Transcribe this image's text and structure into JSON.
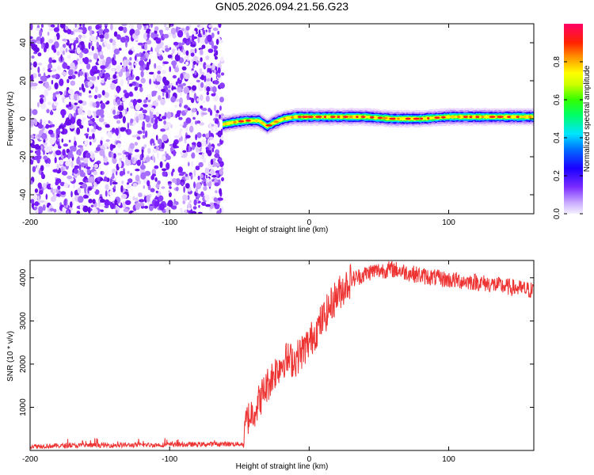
{
  "title": "GN05.2026.094.21.56.G23",
  "chart_data": [
    {
      "type": "heatmap",
      "xlabel": "Height of straight line (km)",
      "ylabel": "Frequency (Hz)",
      "xlim": [
        -200,
        161
      ],
      "ylim": [
        -50,
        50
      ],
      "xticks": [
        -200,
        -100,
        0,
        100
      ],
      "yticks": [
        -40,
        -20,
        0,
        20,
        40
      ],
      "noise_region_x": [
        -200,
        -62
      ],
      "signal_band_x": [
        -62,
        161
      ],
      "signal_track": [
        {
          "x": -62,
          "y": -3
        },
        {
          "x": -55,
          "y": -2
        },
        {
          "x": -45,
          "y": -1
        },
        {
          "x": -36,
          "y": -1
        },
        {
          "x": -30,
          "y": -4
        },
        {
          "x": -25,
          "y": -2
        },
        {
          "x": -18,
          "y": 0
        },
        {
          "x": -10,
          "y": 1
        },
        {
          "x": 0,
          "y": 1
        },
        {
          "x": 20,
          "y": 1
        },
        {
          "x": 40,
          "y": 1
        },
        {
          "x": 60,
          "y": 0
        },
        {
          "x": 80,
          "y": 0
        },
        {
          "x": 100,
          "y": 1
        },
        {
          "x": 130,
          "y": 1
        },
        {
          "x": 161,
          "y": 1
        }
      ],
      "colorbar": {
        "label": "Normalized spectral amplitude",
        "range": [
          0,
          1
        ],
        "ticks": [
          "0.0",
          "0.2",
          "0.4",
          "0.6",
          "0.8"
        ],
        "colors": [
          "#e8e8ff",
          "#7a2cff",
          "#0000ff",
          "#00e5ff",
          "#00ff00",
          "#ffff00",
          "#ff8800",
          "#ff0000",
          "#ff0055"
        ]
      }
    },
    {
      "type": "line",
      "xlabel": "Height of straight line (km)",
      "ylabel": "SNR (10 * v/v)",
      "xlim": [
        -200,
        161
      ],
      "ylim": [
        0,
        4400
      ],
      "xticks": [
        -200,
        -100,
        0,
        100
      ],
      "yticks": [
        1000,
        2000,
        3000,
        4000
      ],
      "line_color": "#ee3333",
      "series": [
        {
          "name": "SNR",
          "points": [
            {
              "x": -200,
              "y": 100
            },
            {
              "x": -150,
              "y": 120
            },
            {
              "x": -100,
              "y": 130
            },
            {
              "x": -60,
              "y": 150
            },
            {
              "x": -47,
              "y": 150
            },
            {
              "x": -45,
              "y": 700
            },
            {
              "x": -38,
              "y": 1000
            },
            {
              "x": -32,
              "y": 1400
            },
            {
              "x": -25,
              "y": 1800
            },
            {
              "x": -18,
              "y": 2100
            },
            {
              "x": -10,
              "y": 2100
            },
            {
              "x": 0,
              "y": 2500
            },
            {
              "x": 10,
              "y": 3050
            },
            {
              "x": 18,
              "y": 3500
            },
            {
              "x": 24,
              "y": 3750
            },
            {
              "x": 30,
              "y": 3950
            },
            {
              "x": 45,
              "y": 4150
            },
            {
              "x": 60,
              "y": 4200
            },
            {
              "x": 80,
              "y": 4050
            },
            {
              "x": 100,
              "y": 3950
            },
            {
              "x": 120,
              "y": 3900
            },
            {
              "x": 140,
              "y": 3800
            },
            {
              "x": 161,
              "y": 3700
            }
          ]
        }
      ]
    }
  ]
}
